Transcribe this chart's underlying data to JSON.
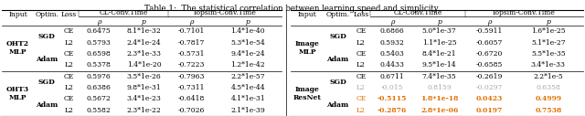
{
  "title": "Table 1:  The statistical correlation between learning speed and simplicity.",
  "bg_color": "#ffffff",
  "font_size": 5.5,
  "title_font_size": 6.2,
  "left_table": {
    "groups": [
      {
        "input": "OHT2\nMLP",
        "rows": [
          {
            "optim": "SGD",
            "loss": "CE",
            "cl_rho": "0.6475",
            "cl_p": "8.1*1e-32",
            "top_rho": "-0.7101",
            "top_p": "1.4*1e-40",
            "color": "black"
          },
          {
            "optim": "",
            "loss": "L2",
            "cl_rho": "0.5793",
            "cl_p": "2.4*1e-24",
            "top_rho": "-0.7817",
            "top_p": "5.3*1e-54",
            "color": "black"
          },
          {
            "optim": "Adam",
            "loss": "CE",
            "cl_rho": "0.6598",
            "cl_p": "2.3*1e-33",
            "top_rho": "-0.5731",
            "top_p": "9.4*1e-24",
            "color": "black"
          },
          {
            "optim": "",
            "loss": "L2",
            "cl_rho": "0.5378",
            "cl_p": "1.4*1e-20",
            "top_rho": "-0.7223",
            "top_p": "1.2*1e-42",
            "color": "black"
          }
        ]
      },
      {
        "input": "OHT3\nMLP",
        "rows": [
          {
            "optim": "SGD",
            "loss": "CE",
            "cl_rho": "0.5976",
            "cl_p": "3.5*1e-26",
            "top_rho": "-0.7963",
            "top_p": "2.2*1e-57",
            "color": "black"
          },
          {
            "optim": "",
            "loss": "L2",
            "cl_rho": "0.6386",
            "cl_p": "9.8*1e-31",
            "top_rho": "-0.7311",
            "top_p": "4.5*1e-44",
            "color": "black"
          },
          {
            "optim": "Adam",
            "loss": "CE",
            "cl_rho": "0.5672",
            "cl_p": "3.4*1e-23",
            "top_rho": "-0.6418",
            "top_p": "4.1*1e-31",
            "color": "black"
          },
          {
            "optim": "",
            "loss": "L2",
            "cl_rho": "0.5582",
            "cl_p": "2.3*1e-22",
            "top_rho": "-0.7026",
            "top_p": "2.1*1e-39",
            "color": "black"
          }
        ]
      }
    ]
  },
  "right_table": {
    "groups": [
      {
        "input": "Image\nMLP",
        "rows": [
          {
            "optim": "SGD",
            "loss": "CE",
            "cl_rho": "0.6866",
            "cl_p": "5.0*1e-37",
            "top_rho": "-0.5911",
            "top_p": "1.6*1e-25",
            "color": "black"
          },
          {
            "optim": "",
            "loss": "L2",
            "cl_rho": "0.5932",
            "cl_p": "1.1*1e-25",
            "top_rho": "-0.6057",
            "top_p": "5.1*1e-27",
            "color": "black"
          },
          {
            "optim": "Adam",
            "loss": "CE",
            "cl_rho": "0.5403",
            "cl_p": "8.4*1e-21",
            "top_rho": "-0.6720",
            "top_p": "5.5*1e-35",
            "color": "black"
          },
          {
            "optim": "",
            "loss": "L2",
            "cl_rho": "0.4433",
            "cl_p": "9.5*1e-14",
            "top_rho": "-0.6585",
            "top_p": "3.4*1e-33",
            "color": "black"
          }
        ]
      },
      {
        "input": "Image\nResNet",
        "rows": [
          {
            "optim": "SGD",
            "loss": "CE",
            "cl_rho": "0.6711",
            "cl_p": "7.4*1e-35",
            "top_rho": "-0.2619",
            "top_p": "2.2*1e-5",
            "color": "black"
          },
          {
            "optim": "",
            "loss": "L2",
            "cl_rho": "-0.015",
            "cl_p": "0.8159",
            "top_rho": "-0.0297",
            "top_p": "0.6358",
            "color": "gray"
          },
          {
            "optim": "Adam",
            "loss": "CE",
            "cl_rho": "-0.5115",
            "cl_p": "1.8*1e-18",
            "top_rho": "0.0423",
            "top_p": "0.4999",
            "color": "orange"
          },
          {
            "optim": "",
            "loss": "L2",
            "cl_rho": "-0.2876",
            "cl_p": "2.8*1e-06",
            "top_rho": "0.0197",
            "top_p": "0.7538",
            "color": "orange"
          }
        ]
      }
    ]
  }
}
